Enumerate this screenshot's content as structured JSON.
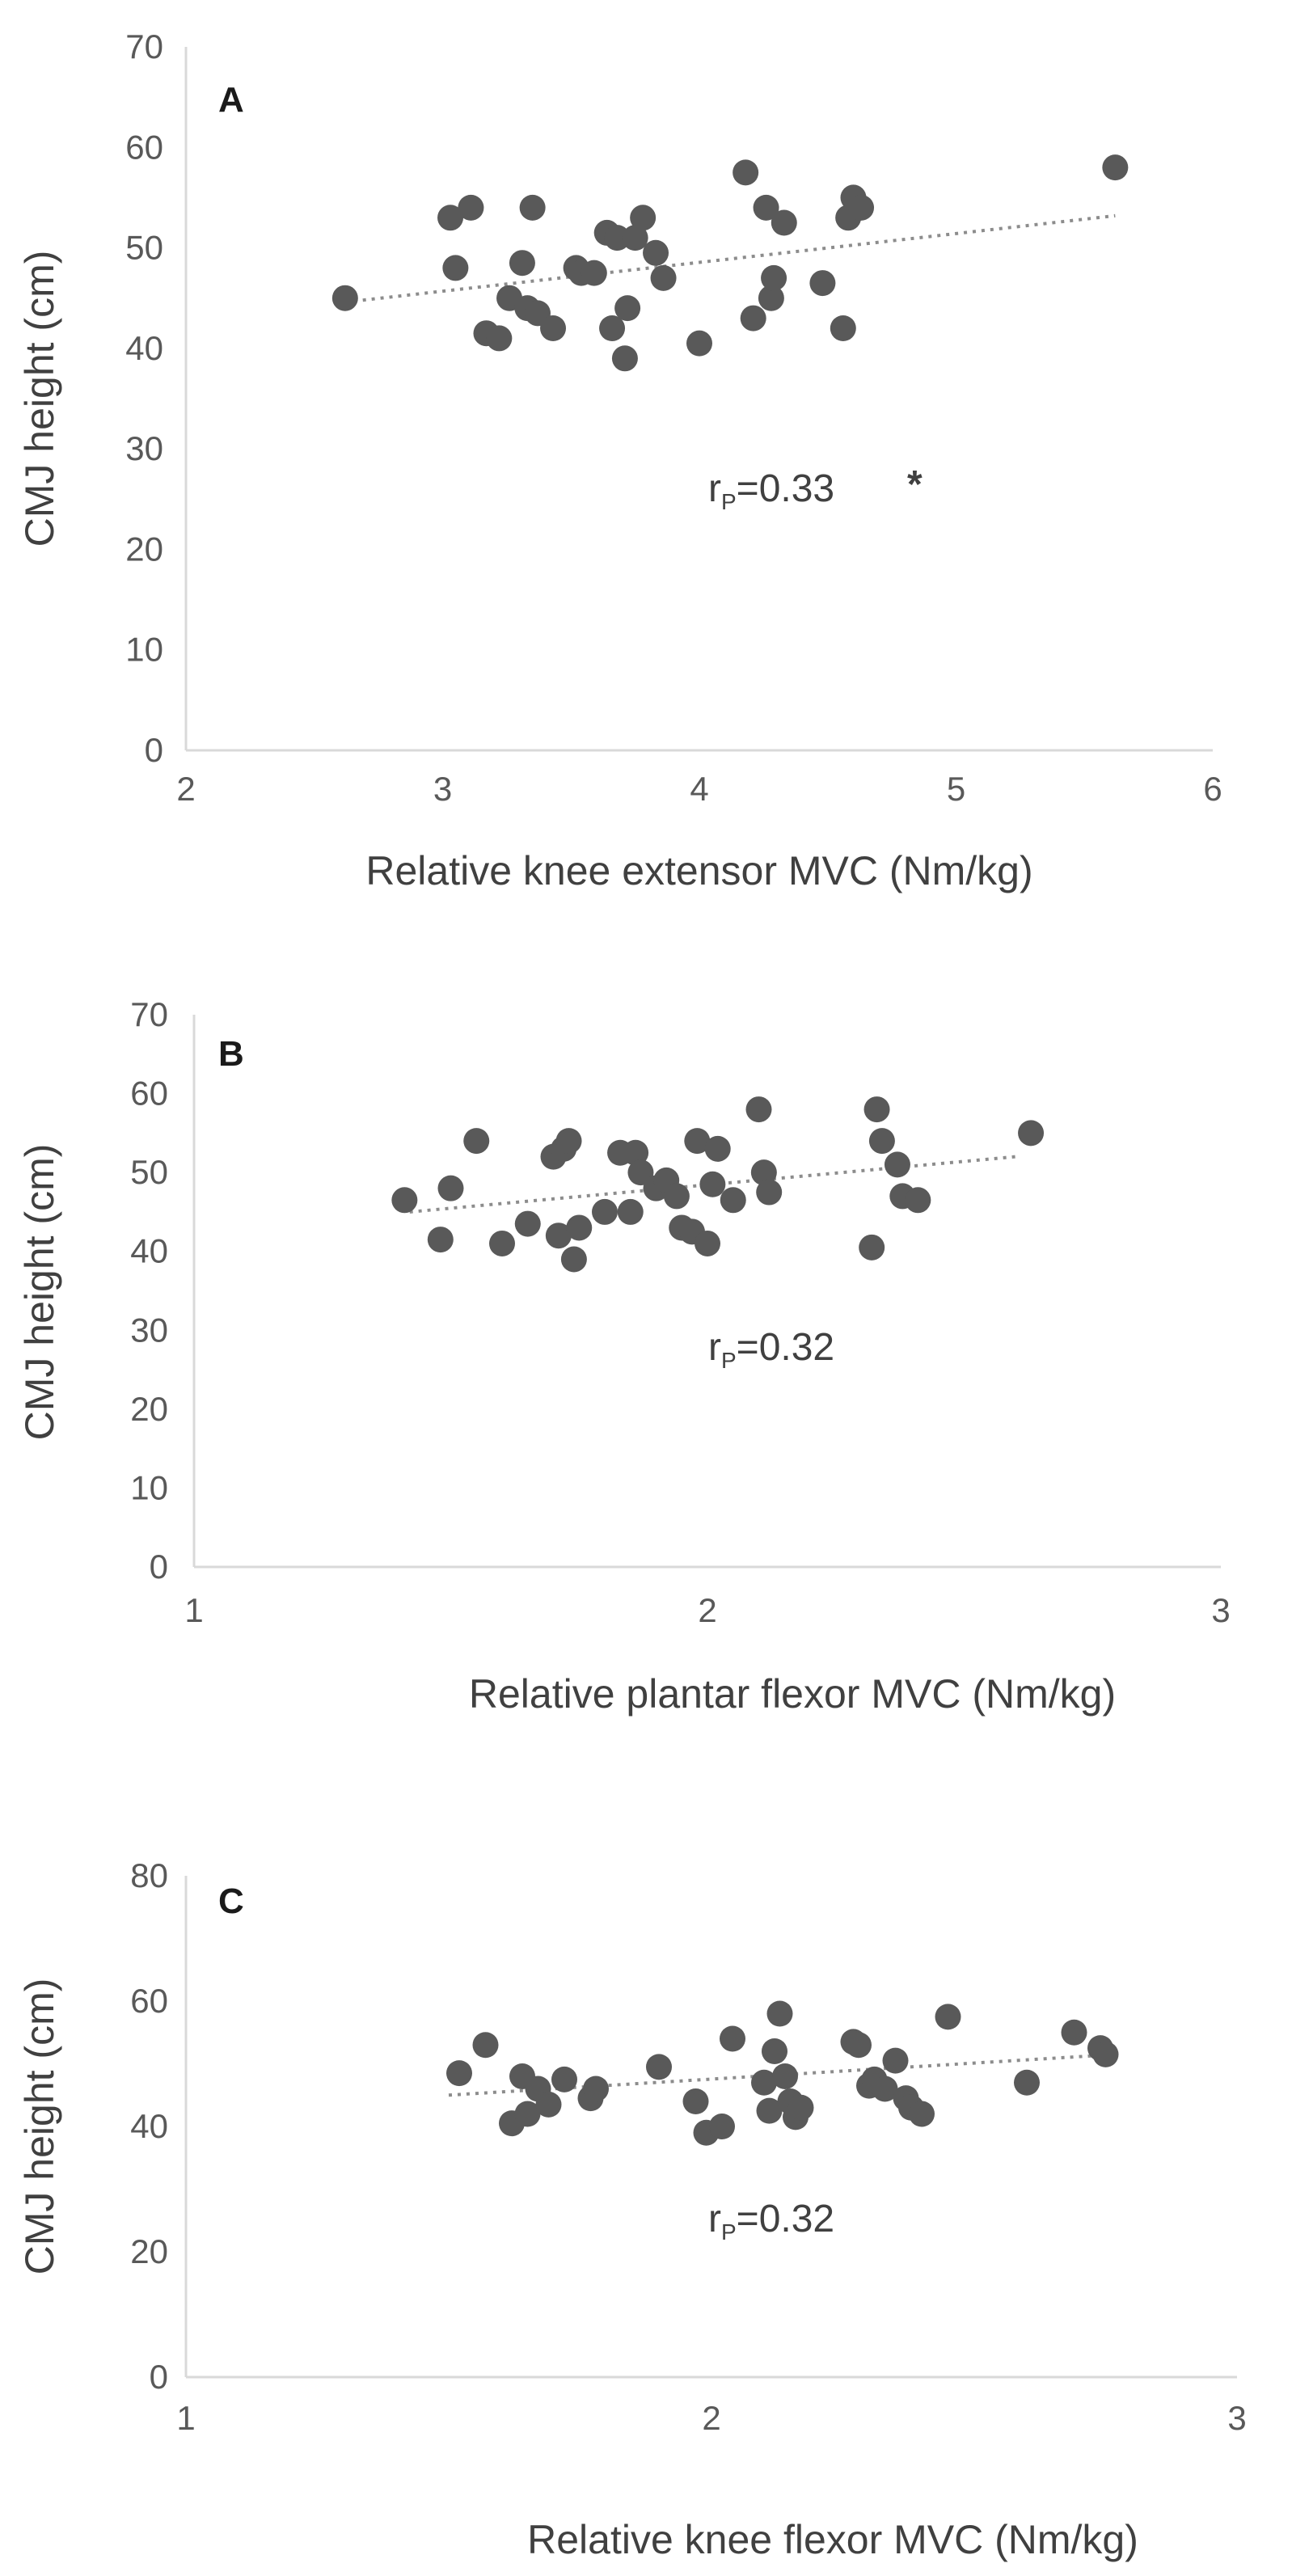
{
  "chart_data": [
    {
      "type": "scatter",
      "panel_label": "A",
      "xlabel": "Relative knee extensor MVC (Nm/kg)",
      "ylabel": "CMJ height (cm)",
      "xlim": [
        2,
        6
      ],
      "ylim": [
        0,
        70
      ],
      "xticks": [
        "2",
        "3",
        "4",
        "5",
        "6"
      ],
      "yticks": [
        "0",
        "10",
        "20",
        "30",
        "40",
        "50",
        "60",
        "70"
      ],
      "annotation": {
        "prefix": "r",
        "subscript": "P",
        "value": "=0.33",
        "marker": "*"
      },
      "trendline": {
        "x": [
          2.62,
          5.62
        ],
        "y": [
          44.6,
          53.2
        ]
      },
      "x": [
        2.62,
        3.03,
        3.05,
        3.11,
        3.17,
        3.22,
        3.26,
        3.31,
        3.33,
        3.35,
        3.37,
        3.43,
        3.52,
        3.54,
        3.59,
        3.64,
        3.66,
        3.68,
        3.71,
        3.72,
        3.75,
        3.78,
        3.83,
        3.86,
        4.0,
        4.18,
        4.21,
        4.26,
        4.28,
        4.29,
        4.33,
        4.48,
        4.56,
        4.58,
        4.6,
        4.63,
        5.62
      ],
      "y": [
        45,
        53,
        48,
        54,
        41.5,
        41,
        45,
        48.5,
        44,
        54,
        43.5,
        42,
        48,
        47.5,
        47.5,
        51.5,
        42,
        51,
        39,
        44,
        51,
        53,
        49.5,
        47,
        40.5,
        57.5,
        43,
        54,
        45,
        47,
        52.5,
        46.5,
        42,
        53,
        55,
        54,
        58
      ]
    },
    {
      "type": "scatter",
      "panel_label": "B",
      "xlabel": "Relative plantar flexor MVC (Nm/kg)",
      "ylabel": "CMJ height (cm)",
      "xlim": [
        1,
        3
      ],
      "ylim": [
        0,
        70
      ],
      "xticks": [
        "1",
        "2",
        "3"
      ],
      "yticks": [
        "0",
        "10",
        "20",
        "30",
        "40",
        "50",
        "60",
        "70"
      ],
      "annotation": {
        "prefix": "r",
        "subscript": "P",
        "value": "=0.32",
        "marker": ""
      },
      "trendline": {
        "x": [
          1.42,
          2.6
        ],
        "y": [
          45,
          52
        ]
      },
      "x": [
        1.41,
        1.48,
        1.5,
        1.55,
        1.6,
        1.65,
        1.7,
        1.71,
        1.72,
        1.73,
        1.74,
        1.75,
        1.8,
        1.83,
        1.85,
        1.86,
        1.87,
        1.9,
        1.92,
        1.94,
        1.95,
        1.97,
        1.98,
        2.0,
        2.01,
        2.02,
        2.05,
        2.1,
        2.11,
        2.12,
        2.32,
        2.33,
        2.34,
        2.37,
        2.38,
        2.41,
        2.63
      ],
      "y": [
        46.5,
        41.5,
        48,
        54,
        41,
        43.5,
        52,
        42,
        53,
        54,
        39,
        43,
        45,
        52.5,
        45,
        52.5,
        50,
        48,
        49,
        47,
        43,
        42.5,
        54,
        41,
        48.5,
        53,
        46.5,
        58,
        50,
        47.5,
        40.5,
        58,
        54,
        51,
        47,
        46.5,
        55
      ]
    },
    {
      "type": "scatter",
      "panel_label": "C",
      "xlabel": "Relative knee flexor MVC (Nm/kg)",
      "ylabel": "CMJ height (cm)",
      "xlim": [
        1,
        3
      ],
      "ylim": [
        0,
        80
      ],
      "xticks": [
        "1",
        "2",
        "3"
      ],
      "yticks": [
        "0",
        "20",
        "40",
        "60",
        "80"
      ],
      "annotation": {
        "prefix": "r",
        "subscript": "P",
        "value": "=0.32",
        "marker": ""
      },
      "trendline": {
        "x": [
          1.5,
          2.77
        ],
        "y": [
          45,
          51.5
        ]
      },
      "x": [
        1.52,
        1.57,
        1.62,
        1.64,
        1.65,
        1.67,
        1.69,
        1.72,
        1.77,
        1.78,
        1.9,
        1.97,
        1.99,
        2.02,
        2.04,
        2.1,
        2.11,
        2.12,
        2.13,
        2.14,
        2.15,
        2.16,
        2.17,
        2.27,
        2.28,
        2.3,
        2.31,
        2.33,
        2.35,
        2.37,
        2.38,
        2.4,
        2.45,
        2.6,
        2.69,
        2.74,
        2.75
      ],
      "y": [
        48.5,
        53,
        40.5,
        48,
        42,
        46,
        43.5,
        47.5,
        44.5,
        46,
        49.5,
        44,
        39,
        40,
        54,
        47,
        42.5,
        52,
        58,
        48,
        44,
        41.5,
        43,
        53.5,
        53,
        46.5,
        47.5,
        46,
        50.5,
        44.5,
        43,
        42,
        57.5,
        47,
        55,
        52.5,
        51.5
      ]
    }
  ]
}
